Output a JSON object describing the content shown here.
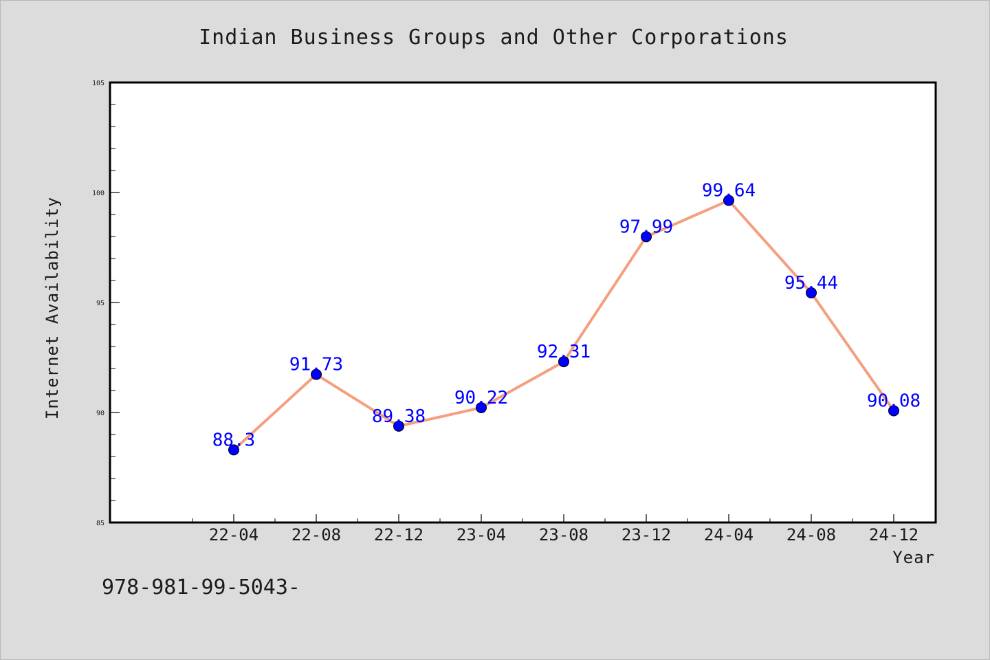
{
  "chart_data": {
    "type": "line",
    "title": "Indian Business Groups and Other Corporations",
    "xlabel": "Year",
    "ylabel": "Internet Availability",
    "categories": [
      "22-04",
      "22-08",
      "22-12",
      "23-04",
      "23-08",
      "23-12",
      "24-04",
      "24-08",
      "24-12"
    ],
    "values": [
      88.3,
      91.73,
      89.38,
      90.22,
      92.31,
      97.99,
      99.64,
      95.44,
      90.08
    ],
    "data_labels": [
      "88.3",
      "91.73",
      "89.38",
      "90.22",
      "92.31",
      "97.99",
      "99.64",
      "95.44",
      "90.08"
    ],
    "ylim": [
      85,
      105
    ],
    "yticks": [
      "85",
      "90",
      "95",
      "100",
      "105"
    ],
    "grid": false,
    "line_color": "#f4a080",
    "marker_color": "#0000ff",
    "label_color": "#0000ff"
  },
  "footnote": "978-981-99-5043-"
}
